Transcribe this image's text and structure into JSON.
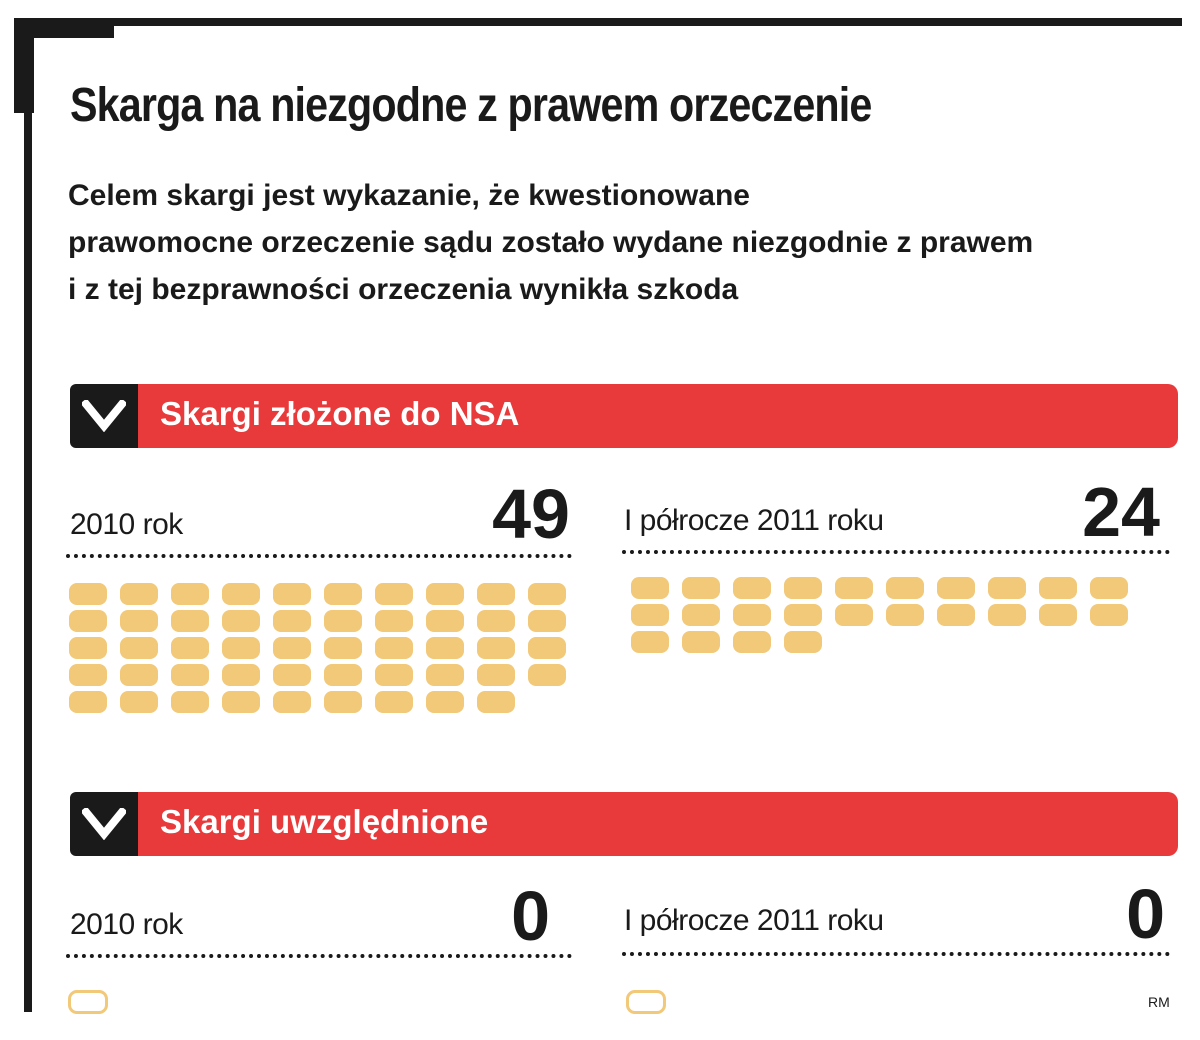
{
  "title": "Skarga na niezgodne z prawem orzeczenie",
  "subtitle": "Celem skargi jest wykazanie, że kwestionowane\nprawomocne orzeczenie sądu zostało wydane niezgodnie z prawem\ni z tej bezprawności orzeczenia wynikła szkoda",
  "credit": "RM",
  "colors": {
    "band_red": "#e8393b",
    "pill": "#f2c879",
    "ink": "#1a1a1a"
  },
  "sections": [
    {
      "heading": "Skargi złożone do NSA",
      "icon": "chevron-down-icon",
      "panels": [
        {
          "label": "2010 rok",
          "value": "49"
        },
        {
          "label": "I półrocze 2011 roku",
          "value": "24"
        }
      ]
    },
    {
      "heading": "Skargi uwzględnione",
      "icon": "chevron-down-icon",
      "panels": [
        {
          "label": "2010 rok",
          "value": "0"
        },
        {
          "label": "I półrocze 2011 roku",
          "value": "0"
        }
      ]
    }
  ],
  "chart_data": {
    "type": "bar",
    "title": "Skarga na niezgodne z prawem orzeczenie",
    "categories": [
      "2010 rok",
      "I półrocze 2011 roku"
    ],
    "series": [
      {
        "name": "Skargi złożone do NSA",
        "values": [
          49,
          24
        ]
      },
      {
        "name": "Skargi uwzględnione",
        "values": [
          0,
          0
        ]
      }
    ]
  }
}
